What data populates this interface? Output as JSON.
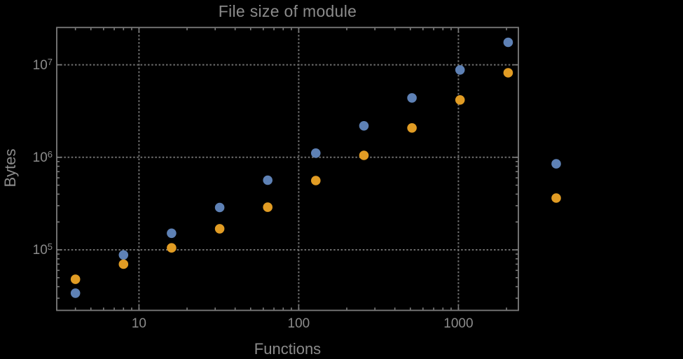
{
  "page": {
    "background_color": "#000000",
    "frame_color": "#7c7c7c",
    "gridline_color": "#6f6f6f",
    "text_color": "#8b8b8b"
  },
  "chart_data": {
    "type": "scatter",
    "title": "File size of module",
    "xlabel": "Functions",
    "ylabel": "Bytes",
    "x_scale": "log10",
    "y_scale": "log10",
    "xlim": [
      3.05,
      2380
    ],
    "ylim": [
      22500,
      25500000
    ],
    "grid": "dotted lines at decade majors on both axes",
    "legend": "none",
    "x_major_ticks": [
      {
        "value": 10,
        "label": "10"
      },
      {
        "value": 100,
        "label": "100"
      },
      {
        "value": 1000,
        "label": "1000"
      }
    ],
    "y_major_ticks": [
      {
        "value": 100000,
        "base": "10",
        "exp": "5"
      },
      {
        "value": 1000000,
        "base": "10",
        "exp": "6"
      },
      {
        "value": 10000000,
        "base": "10",
        "exp": "7"
      }
    ],
    "x": [
      4,
      8,
      16,
      32,
      64,
      128,
      256,
      512,
      1024,
      2048,
      4096
    ],
    "series": [
      {
        "name": "blue-series",
        "color": "#5e81b5",
        "values": [
          34000,
          88000,
          151000,
          287000,
          566000,
          1110000,
          2190000,
          4390000,
          8800000,
          17500000,
          850000
        ]
      },
      {
        "name": "orange-series",
        "color": "#e19c24",
        "values": [
          48000,
          70000,
          105000,
          169000,
          289000,
          561000,
          1050000,
          2080000,
          4170000,
          8200000,
          363000
        ]
      }
    ]
  }
}
